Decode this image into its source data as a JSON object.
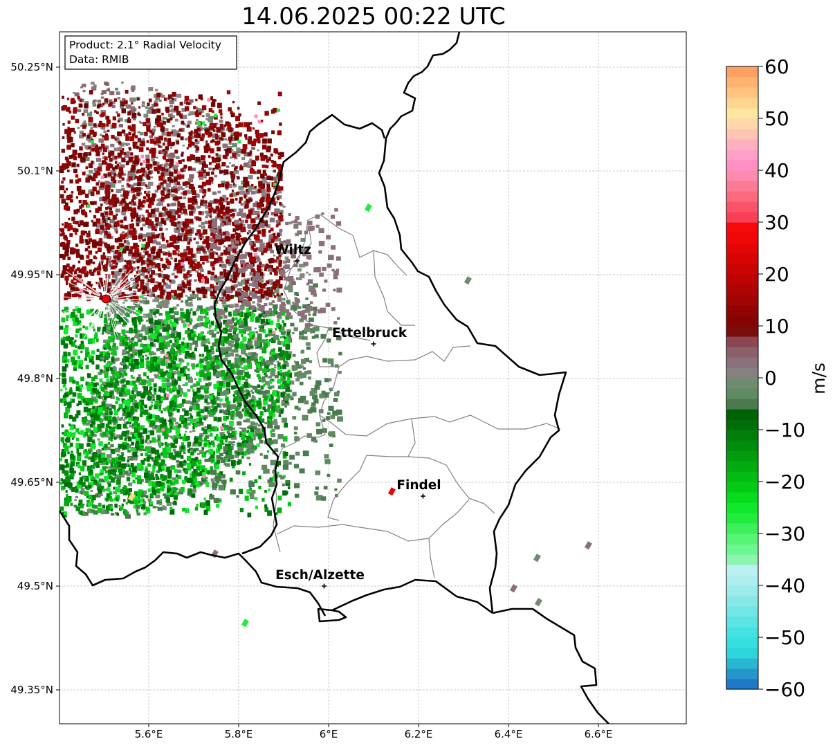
{
  "title": "14.06.2025 00:22 UTC",
  "info_box": {
    "product": "Product: 2.1° Radial Velocity",
    "data": "Data: RMIB"
  },
  "map": {
    "lon_range": [
      5.4,
      6.8
    ],
    "lat_range": [
      49.3,
      50.3
    ],
    "lat_ticks": [
      {
        "value": 50.25,
        "label": "50.25°N"
      },
      {
        "value": 50.1,
        "label": "50.1°N"
      },
      {
        "value": 49.95,
        "label": "49.95°N"
      },
      {
        "value": 49.8,
        "label": "49.8°N"
      },
      {
        "value": 49.65,
        "label": "49.65°N"
      },
      {
        "value": 49.5,
        "label": "49.5°N"
      },
      {
        "value": 49.35,
        "label": "49.35°N"
      }
    ],
    "lon_ticks": [
      {
        "value": 5.6,
        "label": "5.6°E"
      },
      {
        "value": 5.8,
        "label": "5.8°E"
      },
      {
        "value": 6.0,
        "label": "6°E"
      },
      {
        "value": 6.2,
        "label": "6.2°E"
      },
      {
        "value": 6.4,
        "label": "6.4°E"
      },
      {
        "value": 6.6,
        "label": "6.6°E"
      }
    ],
    "grid": true,
    "cities": [
      {
        "name": "Wiltz",
        "lon": 5.93,
        "lat": 49.97
      },
      {
        "name": "Ettelbruck",
        "lon": 6.1,
        "lat": 49.85
      },
      {
        "name": "Findel",
        "lon": 6.21,
        "lat": 49.63
      },
      {
        "name": "Esch/Alzette",
        "lon": 5.99,
        "lat": 49.5
      }
    ],
    "radar_site": {
      "lon": 5.505,
      "lat": 49.915
    },
    "colors": {
      "border": "#000000",
      "cantons": "#808080",
      "grid": "#b0b0b0",
      "radar_marker": "#e8000b"
    }
  },
  "colorbar": {
    "label": "m/s",
    "range": [
      -60,
      60
    ],
    "ticks": [
      {
        "value": 60,
        "label": "60"
      },
      {
        "value": 50,
        "label": "50"
      },
      {
        "value": 40,
        "label": "40"
      },
      {
        "value": 30,
        "label": "30"
      },
      {
        "value": 20,
        "label": "20"
      },
      {
        "value": 10,
        "label": "10"
      },
      {
        "value": 0,
        "label": "0"
      },
      {
        "value": -10,
        "label": "−10"
      },
      {
        "value": -20,
        "label": "−20"
      },
      {
        "value": -30,
        "label": "−30"
      },
      {
        "value": -40,
        "label": "−40"
      },
      {
        "value": -50,
        "label": "−50"
      },
      {
        "value": -60,
        "label": "−60"
      }
    ],
    "stops": [
      {
        "from": -60,
        "to": -58,
        "color": "#1f78c8"
      },
      {
        "from": -58,
        "to": -56,
        "color": "#2596cc"
      },
      {
        "from": -56,
        "to": -54,
        "color": "#29b6d1"
      },
      {
        "from": -54,
        "to": -52,
        "color": "#2fd5dc"
      },
      {
        "from": -52,
        "to": -50,
        "color": "#35dfe0"
      },
      {
        "from": -50,
        "to": -48,
        "color": "#45e2e2"
      },
      {
        "from": -48,
        "to": -46,
        "color": "#5ae4e4"
      },
      {
        "from": -46,
        "to": -44,
        "color": "#70e6e6"
      },
      {
        "from": -44,
        "to": -42,
        "color": "#88e8e8"
      },
      {
        "from": -42,
        "to": -40,
        "color": "#9debeb"
      },
      {
        "from": -40,
        "to": -38,
        "color": "#aeeeee"
      },
      {
        "from": -38,
        "to": -36,
        "color": "#bdf0f0"
      },
      {
        "from": -36,
        "to": -34,
        "color": "#8df5b0"
      },
      {
        "from": -34,
        "to": -32,
        "color": "#6cf790"
      },
      {
        "from": -32,
        "to": -30,
        "color": "#55f575"
      },
      {
        "from": -30,
        "to": -28,
        "color": "#3df05a"
      },
      {
        "from": -28,
        "to": -26,
        "color": "#22ec3e"
      },
      {
        "from": -26,
        "to": -24,
        "color": "#0fe82a"
      },
      {
        "from": -24,
        "to": -22,
        "color": "#06dc1c"
      },
      {
        "from": -22,
        "to": -20,
        "color": "#04cc16"
      },
      {
        "from": -20,
        "to": -18,
        "color": "#03bc13"
      },
      {
        "from": -18,
        "to": -16,
        "color": "#03ab10"
      },
      {
        "from": -16,
        "to": -14,
        "color": "#029c0e"
      },
      {
        "from": -14,
        "to": -12,
        "color": "#028c0c"
      },
      {
        "from": -12,
        "to": -10,
        "color": "#017e0a"
      },
      {
        "from": -10,
        "to": -8,
        "color": "#006e08"
      },
      {
        "from": -8,
        "to": -6,
        "color": "#006206"
      },
      {
        "from": -6,
        "to": -4,
        "color": "#4a7a4e"
      },
      {
        "from": -4,
        "to": -2,
        "color": "#5f8a62"
      },
      {
        "from": -2,
        "to": 0,
        "color": "#6f8c70"
      },
      {
        "from": 0,
        "to": 2,
        "color": "#868080"
      },
      {
        "from": 2,
        "to": 4,
        "color": "#8a707a"
      },
      {
        "from": 4,
        "to": 6,
        "color": "#8c6068"
      },
      {
        "from": 6,
        "to": 8,
        "color": "#8a4652"
      },
      {
        "from": 8,
        "to": 10,
        "color": "#7a0c0c"
      },
      {
        "from": 10,
        "to": 12,
        "color": "#860404"
      },
      {
        "from": 12,
        "to": 14,
        "color": "#920404"
      },
      {
        "from": 14,
        "to": 16,
        "color": "#a00404"
      },
      {
        "from": 16,
        "to": 18,
        "color": "#ae0404"
      },
      {
        "from": 18,
        "to": 20,
        "color": "#bc0404"
      },
      {
        "from": 20,
        "to": 22,
        "color": "#ca0404"
      },
      {
        "from": 22,
        "to": 24,
        "color": "#d80404"
      },
      {
        "from": 24,
        "to": 26,
        "color": "#e40606"
      },
      {
        "from": 26,
        "to": 28,
        "color": "#ef0808"
      },
      {
        "from": 28,
        "to": 30,
        "color": "#f7080a"
      },
      {
        "from": 30,
        "to": 32,
        "color": "#fa4058"
      },
      {
        "from": 32,
        "to": 34,
        "color": "#fb5468"
      },
      {
        "from": 34,
        "to": 36,
        "color": "#fc6a80"
      },
      {
        "from": 36,
        "to": 38,
        "color": "#fd7a94"
      },
      {
        "from": 38,
        "to": 40,
        "color": "#fe8ab0"
      },
      {
        "from": 40,
        "to": 42,
        "color": "#fe90c4"
      },
      {
        "from": 42,
        "to": 44,
        "color": "#fea0c8"
      },
      {
        "from": 44,
        "to": 46,
        "color": "#feb0c0"
      },
      {
        "from": 46,
        "to": 48,
        "color": "#fec4b4"
      },
      {
        "from": 48,
        "to": 50,
        "color": "#fed8a8"
      },
      {
        "from": 50,
        "to": 52,
        "color": "#fee6a0"
      },
      {
        "from": 52,
        "to": 54,
        "color": "#fed490"
      },
      {
        "from": 54,
        "to": 56,
        "color": "#fec480"
      },
      {
        "from": 56,
        "to": 58,
        "color": "#feb470"
      },
      {
        "from": 58,
        "to": 60,
        "color": "#fea060"
      }
    ]
  }
}
